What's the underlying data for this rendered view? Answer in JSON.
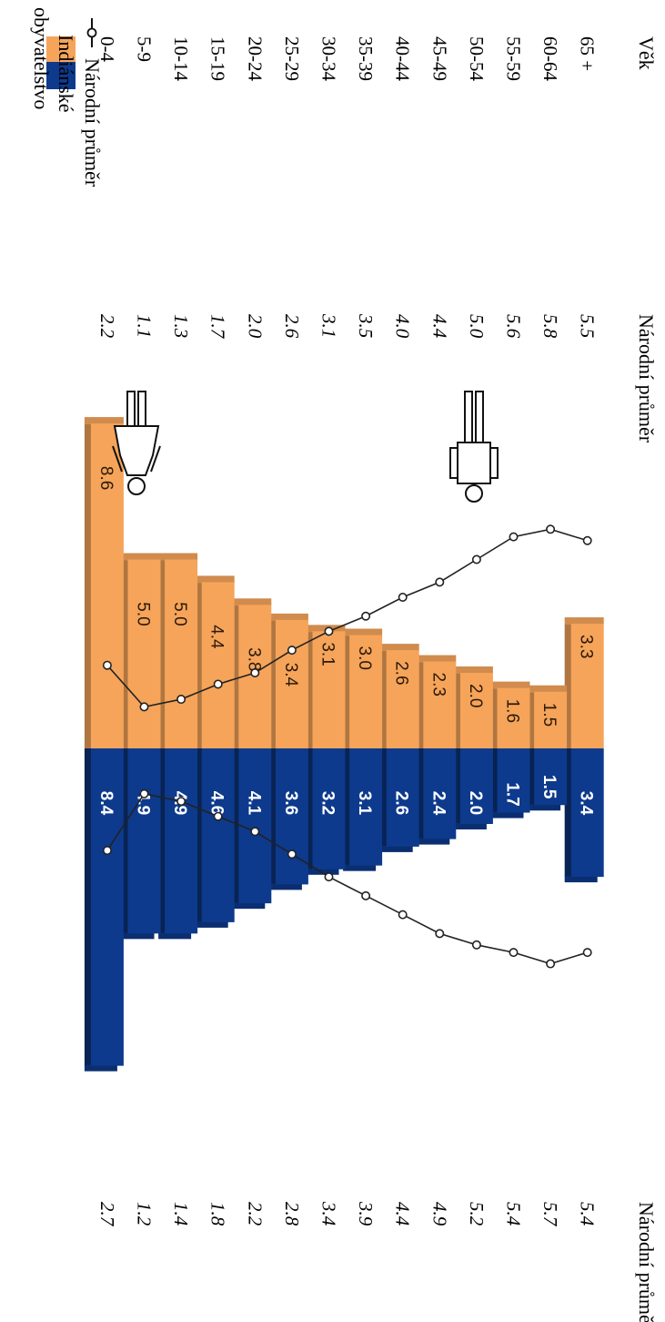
{
  "chart_data": {
    "type": "bar",
    "orientation": "horizontal-population-pyramid",
    "title": "",
    "age_header": "Věk",
    "national_header": "Národní průměr",
    "categories": [
      "65 +",
      "60-64",
      "55-59",
      "50-54",
      "45-49",
      "40-44",
      "35-39",
      "30-34",
      "25-29",
      "20-24",
      "15-19",
      "10-14",
      "5-9",
      "0-4"
    ],
    "series": [
      {
        "side": "left",
        "color": "#f5a45a",
        "values": [
          3.3,
          1.5,
          1.6,
          2.0,
          2.3,
          2.6,
          3.0,
          3.1,
          3.4,
          3.8,
          4.4,
          5.0,
          5.0,
          8.6
        ],
        "national": [
          5.5,
          5.8,
          5.6,
          5.0,
          4.4,
          4.0,
          3.5,
          3.1,
          2.6,
          2.0,
          1.7,
          1.3,
          1.1,
          2.2
        ]
      },
      {
        "side": "right",
        "color": "#0d3a8c",
        "values": [
          3.4,
          1.5,
          1.7,
          2.0,
          2.4,
          2.6,
          3.1,
          3.2,
          3.6,
          4.1,
          4.6,
          4.9,
          4.9,
          8.4
        ],
        "national": [
          5.4,
          5.7,
          5.4,
          5.2,
          4.9,
          4.4,
          3.9,
          3.4,
          2.8,
          2.2,
          1.8,
          1.4,
          1.2,
          2.7
        ]
      }
    ],
    "legend": {
      "line_label": "Národní průměr",
      "bars_label_1": "Indiánské",
      "bars_label_2": "obyvatelstvo",
      "placement": "bottom"
    },
    "icons": {
      "left": "male-figure-icon",
      "right": "female-figure-icon"
    }
  }
}
